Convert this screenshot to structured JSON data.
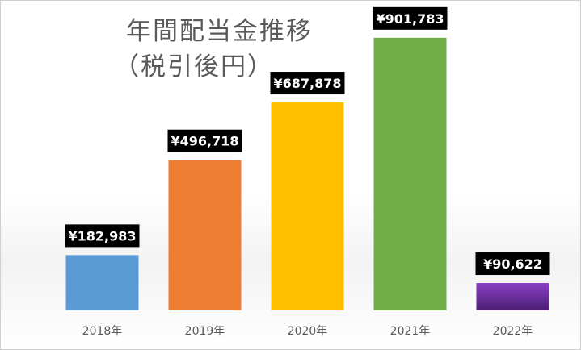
{
  "chart_data": {
    "type": "bar",
    "title_line1": "年間配当金推移",
    "title_line2": "（税引後円）",
    "categories": [
      "2018年",
      "2019年",
      "2020年",
      "2021年",
      "2022年"
    ],
    "values": [
      182983,
      496718,
      687878,
      901783,
      90622
    ],
    "data_labels": [
      "¥182,983",
      "¥496,718",
      "¥687,878",
      "¥901,783",
      "¥90,622"
    ],
    "colors": [
      "#5b9bd5",
      "#ed7d31",
      "#ffc000",
      "#70ad47",
      "#7030a0"
    ],
    "label_bg": "#000000",
    "ylim": [
      0,
      1000000
    ],
    "grid": false,
    "legend": "none"
  }
}
